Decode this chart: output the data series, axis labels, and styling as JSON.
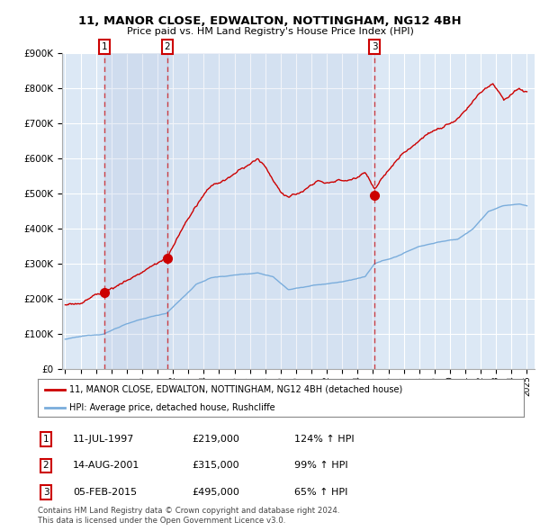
{
  "title": "11, MANOR CLOSE, EDWALTON, NOTTINGHAM, NG12 4BH",
  "subtitle": "Price paid vs. HM Land Registry's House Price Index (HPI)",
  "legend_line1": "11, MANOR CLOSE, EDWALTON, NOTTINGHAM, NG12 4BH (detached house)",
  "legend_line2": "HPI: Average price, detached house, Rushcliffe",
  "table_rows": [
    {
      "num": "1",
      "date": "11-JUL-1997",
      "price": "£219,000",
      "hpi": "124% ↑ HPI"
    },
    {
      "num": "2",
      "date": "14-AUG-2001",
      "price": "£315,000",
      "hpi": "99% ↑ HPI"
    },
    {
      "num": "3",
      "date": "05-FEB-2015",
      "price": "£495,000",
      "hpi": "65% ↑ HPI"
    }
  ],
  "footnote1": "Contains HM Land Registry data © Crown copyright and database right 2024.",
  "footnote2": "This data is licensed under the Open Government Licence v3.0.",
  "sale_dates": [
    1997.53,
    2001.62,
    2015.09
  ],
  "sale_prices": [
    219000,
    315000,
    495000
  ],
  "hpi_line_color": "#7aaddc",
  "price_line_color": "#cc0000",
  "marker_color": "#cc0000",
  "dashed_line_color_red": "#cc0000",
  "dashed_line_color_blue": "#7aaddc",
  "background_color": "#ddeeff",
  "plot_bg_color": "#dce8f5",
  "grid_color": "#ffffff",
  "shade_color": "#c8d8ee",
  "ylim": [
    0,
    900000
  ],
  "xlim_start": 1994.8,
  "xlim_end": 2025.5
}
